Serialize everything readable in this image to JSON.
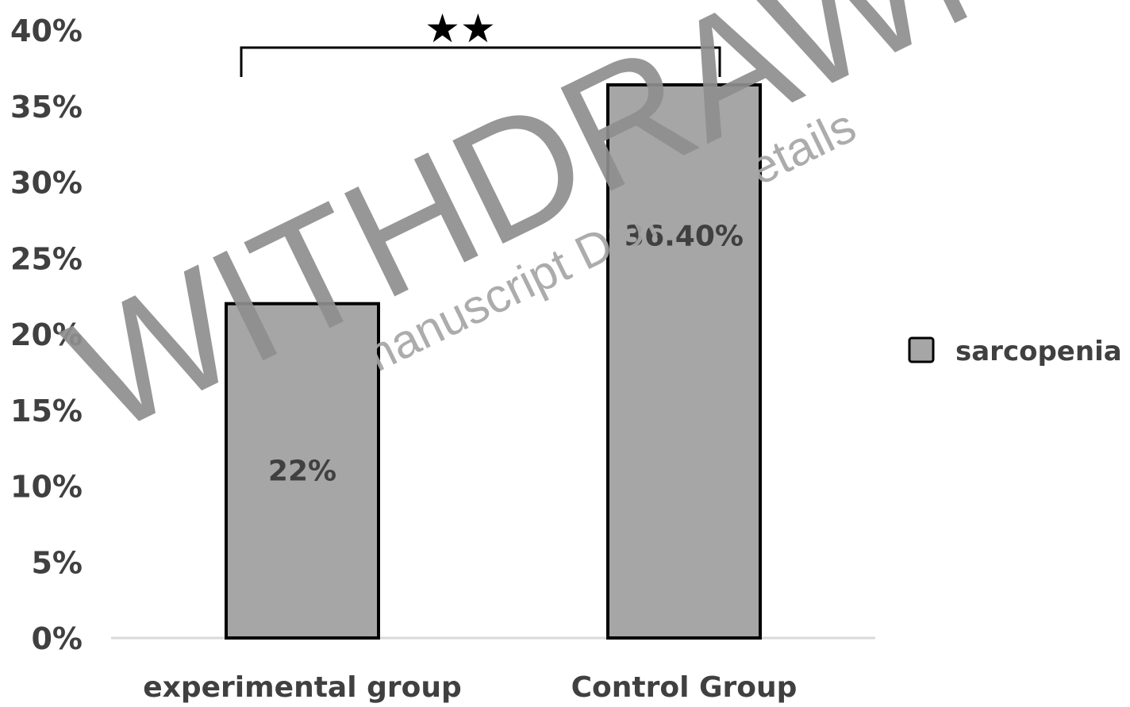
{
  "chart_data": {
    "type": "bar",
    "categories": [
      "experimental group",
      "Control Group"
    ],
    "series": [
      {
        "name": "sarcopenia",
        "values": [
          22,
          36.4
        ],
        "data_labels": [
          "22%",
          "36.40%"
        ]
      }
    ],
    "yticks": [
      "0%",
      "5%",
      "10%",
      "15%",
      "20%",
      "25%",
      "30%",
      "35%",
      "40%"
    ],
    "ylim": [
      0,
      40
    ],
    "grid": false,
    "legend_position": "right",
    "significance": "★★",
    "bar_color": "#a6a6a6",
    "bar_edge_color": "#000000",
    "axis_text_color": "#404040"
  },
  "watermark": {
    "main": "WITHDRAWN",
    "sub": "see manuscript DOI for details"
  }
}
